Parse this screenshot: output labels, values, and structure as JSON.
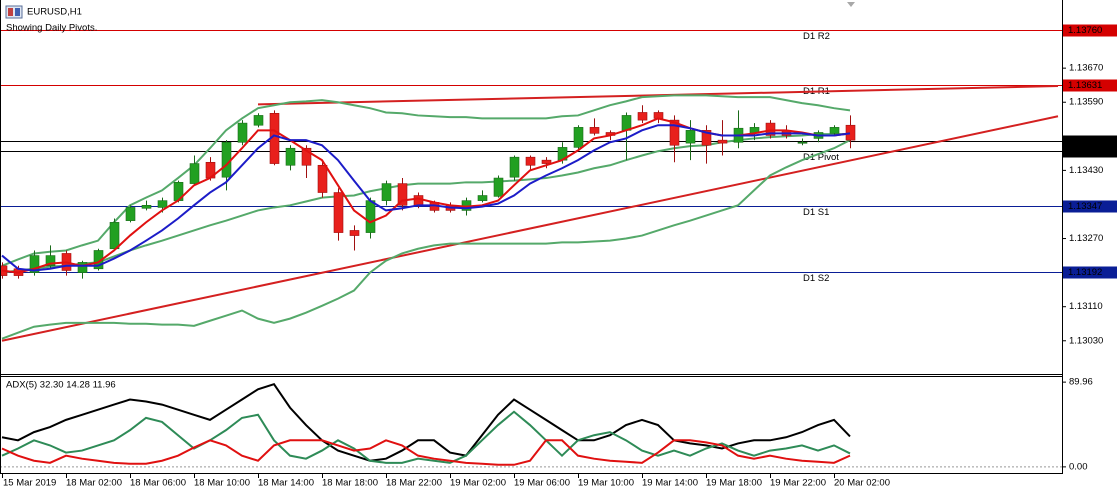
{
  "chart_data": [
    {
      "type": "candlestick",
      "title": "EURUSD,H1",
      "subtitle": "Showing Daily Pivots.",
      "categories": [
        "15 Mar 2019",
        null,
        null,
        null,
        "18 Mar 02:00",
        null,
        null,
        null,
        "18 Mar 06:00",
        null,
        null,
        null,
        "18 Mar 10:00",
        null,
        null,
        null,
        "18 Mar 14:00",
        null,
        null,
        null,
        "18 Mar 18:00",
        null,
        null,
        null,
        "18 Mar 22:00",
        null,
        null,
        null,
        "19 Mar 02:00",
        null,
        null,
        null,
        "19 Mar 06:00",
        null,
        null,
        null,
        "19 Mar 10:00",
        null,
        null,
        null,
        "19 Mar 14:00",
        null,
        null,
        null,
        "19 Mar 18:00",
        null,
        null,
        null,
        "19 Mar 22:00",
        null,
        null,
        null,
        "20 Mar 02:00",
        null
      ],
      "open": [
        1.13206,
        1.13199,
        1.1319,
        1.13206,
        1.13235,
        1.1319,
        1.13199,
        1.13246,
        1.13312,
        1.13341,
        1.13343,
        1.13359,
        1.13399,
        1.13449,
        1.13414,
        1.13496,
        1.13536,
        1.13564,
        1.13442,
        1.13482,
        1.13442,
        1.13378,
        1.13289,
        1.13284,
        1.13359,
        1.13399,
        1.13371,
        1.13355,
        1.13348,
        1.13336,
        1.13359,
        1.13369,
        1.13414,
        1.13461,
        1.13454,
        1.13454,
        1.13484,
        1.13531,
        1.13519,
        1.13524,
        1.13566,
        1.13566,
        1.13548,
        1.13494,
        1.13524,
        1.13501,
        1.13496,
        1.13517,
        1.13541,
        1.13524,
        1.13494,
        1.13505,
        1.13517,
        1.13536
      ],
      "high": [
        1.13214,
        1.13206,
        1.13242,
        1.13254,
        1.13242,
        1.13218,
        1.13246,
        1.13317,
        1.13348,
        1.13359,
        1.13366,
        1.13406,
        1.13465,
        1.13461,
        1.13501,
        1.13548,
        1.13564,
        1.13571,
        1.13489,
        1.13489,
        1.13454,
        1.13388,
        1.13301,
        1.13366,
        1.13406,
        1.13412,
        1.13378,
        1.13359,
        1.13355,
        1.13366,
        1.13383,
        1.13418,
        1.13465,
        1.13465,
        1.13461,
        1.13496,
        1.13536,
        1.13552,
        1.13524,
        1.13566,
        1.13583,
        1.13571,
        1.13559,
        1.13548,
        1.13536,
        1.13548,
        1.13571,
        1.13541,
        1.13548,
        1.13536,
        1.13505,
        1.13524,
        1.13536,
        1.13559
      ],
      "low": [
        1.13176,
        1.13176,
        1.13183,
        1.13199,
        1.13183,
        1.13176,
        1.13195,
        1.13242,
        1.13308,
        1.13336,
        1.13331,
        1.13355,
        1.13395,
        1.13406,
        1.13383,
        1.13489,
        1.13531,
        1.13442,
        1.1343,
        1.13412,
        1.13366,
        1.13265,
        1.13242,
        1.1327,
        1.13348,
        1.13336,
        1.13341,
        1.13331,
        1.13331,
        1.13324,
        1.13355,
        1.13366,
        1.13406,
        1.1343,
        1.13435,
        1.13446,
        1.13477,
        1.13512,
        1.13501,
        1.13454,
        1.13541,
        1.13541,
        1.13449,
        1.13454,
        1.13446,
        1.13465,
        1.13482,
        1.13501,
        1.13505,
        1.13505,
        1.13489,
        1.13496,
        1.13512,
        1.13482
      ],
      "close": [
        1.13183,
        1.13183,
        1.1323,
        1.1323,
        1.13195,
        1.13214,
        1.13242,
        1.13308,
        1.13343,
        1.13348,
        1.13359,
        1.13402,
        1.13446,
        1.13412,
        1.13496,
        1.13541,
        1.13559,
        1.13446,
        1.13482,
        1.13442,
        1.13378,
        1.13284,
        1.13277,
        1.13359,
        1.13399,
        1.13348,
        1.13348,
        1.13336,
        1.13336,
        1.13359,
        1.13371,
        1.13412,
        1.13461,
        1.13442,
        1.13446,
        1.13484,
        1.13531,
        1.13517,
        1.13512,
        1.13559,
        1.13548,
        1.13552,
        1.13489,
        1.13524,
        1.13489,
        1.13494,
        1.13529,
        1.13531,
        1.13512,
        1.13512,
        1.13496,
        1.13519,
        1.13531,
        1.13501
      ],
      "up_color": "#22a022",
      "down_color": "#e8201c",
      "ylim": [
        1.12952,
        1.1383
      ],
      "yticks": [
        {
          "value": 1.1367,
          "label": "1.13670"
        },
        {
          "value": 1.1359,
          "label": "1.13590"
        },
        {
          "value": 1.1343,
          "label": "1.13430"
        },
        {
          "value": 1.1327,
          "label": "1.13270"
        },
        {
          "value": 1.1311,
          "label": "1.13110"
        },
        {
          "value": 1.1303,
          "label": "1.13030"
        }
      ],
      "lines": [
        {
          "color": "#55a96a",
          "values": [
            1.13206,
            1.13221,
            1.13235,
            1.13239,
            1.13242,
            1.13254,
            1.13265,
            1.13308,
            1.13348,
            1.13366,
            1.13383,
            1.13412,
            1.13442,
            1.13482,
            1.13524,
            1.13552,
            1.13576,
            1.13583,
            1.1359,
            1.13592,
            1.13595,
            1.1359,
            1.13583,
            1.13576,
            1.13566,
            1.13564,
            1.13559,
            1.13557,
            1.13555,
            1.13555,
            1.13552,
            1.13552,
            1.13552,
            1.13552,
            1.13552,
            1.13557,
            1.13559,
            1.13571,
            1.13583,
            1.13592,
            1.13602,
            1.13604,
            1.13606,
            1.13606,
            1.13606,
            1.13604,
            1.13602,
            1.13602,
            1.13602,
            1.13595,
            1.13588,
            1.13583,
            1.13576,
            1.13571
          ]
        },
        {
          "color": "#55a96a",
          "values": [
            1.1319,
            1.13195,
            1.13199,
            1.13204,
            1.13206,
            1.13211,
            1.13214,
            1.13228,
            1.13242,
            1.13254,
            1.13265,
            1.13277,
            1.13289,
            1.13301,
            1.13312,
            1.13324,
            1.13336,
            1.13343,
            1.13348,
            1.13357,
            1.13366,
            1.13369,
            1.13371,
            1.13381,
            1.13388,
            1.13395,
            1.13399,
            1.13399,
            1.13399,
            1.13402,
            1.13402,
            1.13404,
            1.13406,
            1.13409,
            1.13412,
            1.13418,
            1.13425,
            1.13435,
            1.13442,
            1.13454,
            1.13465,
            1.13475,
            1.13482,
            1.13487,
            1.13489,
            1.13496,
            1.13501,
            1.13505,
            1.13508,
            1.1351,
            1.13512,
            1.13515,
            1.13515,
            1.13515
          ]
        },
        {
          "color": "#55a96a",
          "values": [
            1.13035,
            1.13049,
            1.13063,
            1.13068,
            1.13072,
            1.13072,
            1.13072,
            1.13072,
            1.1307,
            1.1307,
            1.13068,
            1.13068,
            1.13065,
            1.13077,
            1.13089,
            1.13101,
            1.13082,
            1.13072,
            1.13082,
            1.13096,
            1.13112,
            1.13129,
            1.13148,
            1.1319,
            1.13218,
            1.13235,
            1.13246,
            1.13254,
            1.13258,
            1.13258,
            1.13258,
            1.13258,
            1.13258,
            1.13258,
            1.13258,
            1.13261,
            1.13261,
            1.13263,
            1.13265,
            1.1327,
            1.13277,
            1.13289,
            1.13301,
            1.13312,
            1.13324,
            1.13336,
            1.13348,
            1.13383,
            1.13418,
            1.13437,
            1.13454,
            1.13468,
            1.13482,
            1.13501
          ]
        },
        {
          "color": "#e01010",
          "values": [
            1.13195,
            1.1319,
            1.13199,
            1.13211,
            1.13214,
            1.13206,
            1.13214,
            1.13242,
            1.13277,
            1.13308,
            1.13336,
            1.13359,
            1.13395,
            1.13412,
            1.13442,
            1.13482,
            1.13524,
            1.13524,
            1.13501,
            1.13477,
            1.13454,
            1.13395,
            1.13336,
            1.13308,
            1.13324,
            1.13359,
            1.13364,
            1.13355,
            1.13348,
            1.13345,
            1.13348,
            1.13359,
            1.13395,
            1.1343,
            1.13442,
            1.13454,
            1.13477,
            1.13505,
            1.13512,
            1.13524,
            1.13536,
            1.13552,
            1.13543,
            1.13529,
            1.13519,
            1.13512,
            1.13512,
            1.13517,
            1.13524,
            1.13524,
            1.13519,
            1.13512,
            1.13512,
            1.13517
          ]
        },
        {
          "color": "#1c1cc8",
          "values": [
            1.1323,
            1.13199,
            1.13195,
            1.13199,
            1.13206,
            1.13206,
            1.13206,
            1.13223,
            1.13242,
            1.13265,
            1.13289,
            1.13317,
            1.13348,
            1.13378,
            1.13402,
            1.13442,
            1.13482,
            1.13512,
            1.13501,
            1.13501,
            1.13489,
            1.13454,
            1.13406,
            1.13359,
            1.13336,
            1.13341,
            1.13348,
            1.13348,
            1.13343,
            1.13341,
            1.13345,
            1.13352,
            1.13371,
            1.13399,
            1.13418,
            1.13435,
            1.13454,
            1.13477,
            1.13496,
            1.13505,
            1.13524,
            1.13536,
            1.13536,
            1.13529,
            1.13519,
            1.13512,
            1.13512,
            1.13512,
            1.13517,
            1.13517,
            1.13517,
            1.13512,
            1.13512,
            1.13517
          ]
        }
      ],
      "trendlines": [
        {
          "color": "#d42020",
          "x": [
            0,
            66
          ],
          "values": [
            1.1303,
            1.13557
          ]
        },
        {
          "color": "#d42020",
          "x": [
            16,
            66
          ],
          "values": [
            1.13585,
            1.13628
          ]
        }
      ],
      "levels": [
        {
          "label": "D1 R2",
          "value": 1.1376,
          "value_label": "1.13760",
          "color": "#d40000"
        },
        {
          "label": "D1 R1",
          "value": 1.13631,
          "value_label": "1.13631",
          "color": "#d40000"
        },
        {
          "label": "D1 Pivot",
          "value": 1.13476,
          "value_label": "1.13476",
          "color": "#000000"
        },
        {
          "label": "D1 S1",
          "value": 1.13347,
          "value_label": "1.13347",
          "color": "#0a1e96"
        },
        {
          "label": "D1 S2",
          "value": 1.13192,
          "value_label": "1.13192",
          "color": "#0a1e96"
        }
      ],
      "price_lines": [
        {
          "value": 1.13499,
          "value_label": "1.13499",
          "color": "#000000"
        }
      ]
    },
    {
      "type": "line",
      "title": "ADX(5) 32.30 14.28 11.96",
      "ylim": [
        -6.5,
        95.4
      ],
      "yticks": [
        89.96,
        {
          "value": 0,
          "label": "0.00"
        }
      ],
      "series": [
        {
          "color": "#000000",
          "values": [
            31.4,
            28.2,
            36.9,
            42.3,
            49.9,
            55.3,
            60.7,
            66.1,
            71.5,
            69.4,
            66.1,
            60.7,
            55.3,
            49.9,
            60.7,
            71.5,
            82.4,
            87.8,
            62.9,
            44.4,
            28.2,
            17.3,
            11.9,
            6.5,
            8.7,
            17.3,
            28.2,
            28.2,
            15.2,
            11.9,
            33.6,
            55.3,
            71.5,
            60.7,
            49.9,
            39.0,
            28.2,
            28.2,
            33.6,
            44.4,
            49.9,
            44.4,
            28.2,
            24.9,
            22.8,
            19.5,
            24.9,
            28.2,
            28.2,
            31.4,
            36.9,
            44.4,
            49.9,
            32.3
          ]
        },
        {
          "color": "#2e8b57",
          "values": [
            11.9,
            19.5,
            28.2,
            22.8,
            15.2,
            17.3,
            22.8,
            28.2,
            39.0,
            52.0,
            47.7,
            33.6,
            19.5,
            28.2,
            39.0,
            52.0,
            55.3,
            28.2,
            11.9,
            8.7,
            17.3,
            28.2,
            19.5,
            6.5,
            4.3,
            4.3,
            8.7,
            6.5,
            4.3,
            11.9,
            28.2,
            44.4,
            58.5,
            44.4,
            28.2,
            11.9,
            28.2,
            33.6,
            36.9,
            28.2,
            17.3,
            11.9,
            17.3,
            11.9,
            19.5,
            24.9,
            17.3,
            11.9,
            17.3,
            19.5,
            22.8,
            17.3,
            22.8,
            14.28
          ]
        },
        {
          "color": "#e01010",
          "values": [
            19.5,
            11.9,
            6.5,
            4.3,
            11.9,
            8.7,
            6.5,
            4.3,
            3.3,
            3.3,
            6.5,
            11.9,
            20.6,
            28.2,
            22.8,
            11.9,
            6.5,
            22.8,
            28.2,
            28.2,
            28.2,
            22.8,
            17.3,
            19.5,
            28.2,
            22.8,
            11.9,
            8.7,
            6.5,
            4.3,
            3.3,
            2.2,
            2.2,
            6.5,
            28.2,
            28.2,
            11.9,
            8.7,
            6.5,
            5.4,
            4.3,
            15.2,
            28.2,
            28.2,
            26.0,
            22.8,
            11.9,
            8.7,
            11.9,
            8.7,
            6.5,
            5.4,
            4.3,
            11.96
          ]
        }
      ]
    }
  ]
}
